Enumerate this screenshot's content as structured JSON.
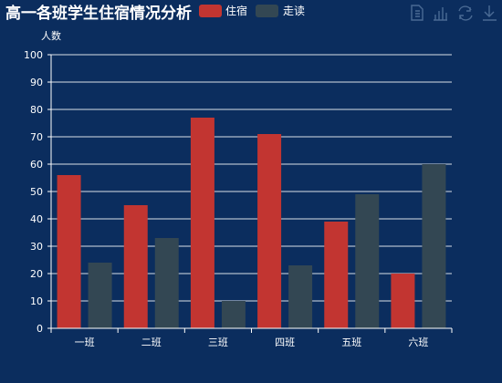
{
  "chart_data": {
    "type": "bar",
    "title": "高一各班学生住宿情况分析",
    "ylabel": "人数",
    "xlabel": "",
    "categories": [
      "一班",
      "二班",
      "三班",
      "四班",
      "五班",
      "六班"
    ],
    "series": [
      {
        "name": "住宿",
        "values": [
          56,
          45,
          77,
          71,
          39,
          20
        ]
      },
      {
        "name": "走读",
        "values": [
          24,
          33,
          10,
          23,
          49,
          60
        ]
      }
    ],
    "ylim": [
      0,
      100
    ],
    "yticks": [
      "0",
      "10",
      "20",
      "30",
      "40",
      "50",
      "60",
      "70",
      "80",
      "90",
      "100"
    ],
    "grid": true,
    "legend_position": "top"
  },
  "colors": {
    "background": "#0b2d5e",
    "series": [
      "#c23531",
      "#334753"
    ]
  },
  "toolbox": {
    "icons": [
      "data-view-icon",
      "bar-chart-icon",
      "restore-icon",
      "download-icon"
    ]
  }
}
